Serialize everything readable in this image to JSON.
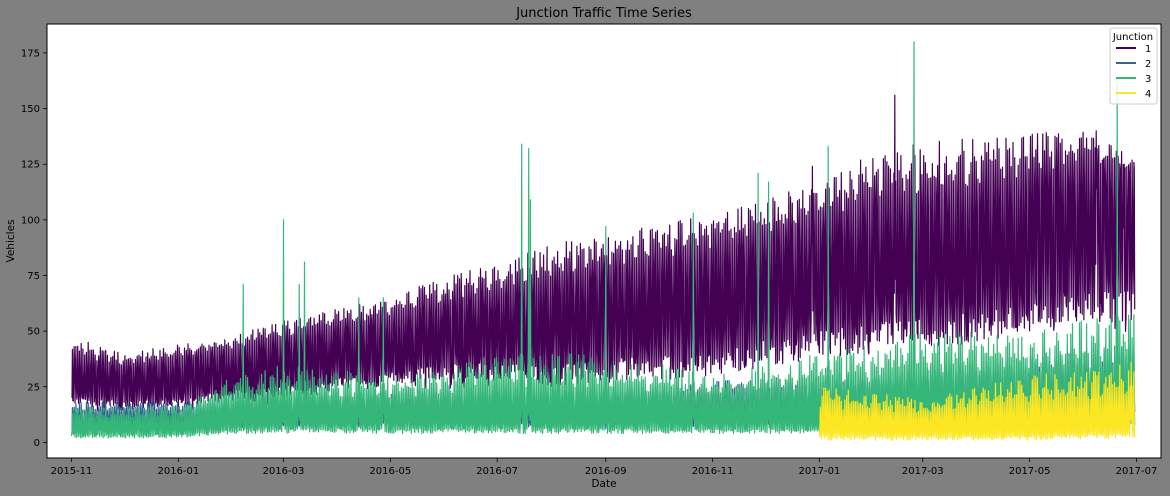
{
  "chart_data": {
    "type": "line",
    "title": "Junction Traffic Time Series",
    "xlabel": "Date",
    "ylabel": "Vehicles",
    "x_ticks": [
      "2015-11",
      "2016-01",
      "2016-03",
      "2016-05",
      "2016-07",
      "2016-09",
      "2016-11",
      "2017-01",
      "2017-03",
      "2017-05",
      "2017-07"
    ],
    "x_range": [
      "2015-10-18",
      "2017-07-15"
    ],
    "y_ticks": [
      0,
      25,
      50,
      75,
      100,
      125,
      150,
      175
    ],
    "ylim": [
      -7,
      188
    ],
    "grid": false,
    "legend": {
      "title": "Junction",
      "position": "top-right"
    },
    "series": [
      {
        "name": "1",
        "color": "#440154",
        "start": "2015-11-01",
        "end": "2017-06-30",
        "knots": [
          [
            "2015-11-01",
            16,
            34,
            48
          ],
          [
            "2015-12-01",
            15,
            30,
            40
          ],
          [
            "2016-01-01",
            16,
            34,
            44
          ],
          [
            "2016-02-01",
            19,
            38,
            48
          ],
          [
            "2016-03-01",
            20,
            42,
            55
          ],
          [
            "2016-04-01",
            23,
            46,
            60
          ],
          [
            "2016-05-01",
            25,
            50,
            65
          ],
          [
            "2016-06-01",
            28,
            56,
            75
          ],
          [
            "2016-07-01",
            28,
            60,
            80
          ],
          [
            "2016-08-01",
            25,
            62,
            90
          ],
          [
            "2016-09-01",
            27,
            70,
            93
          ],
          [
            "2016-10-01",
            28,
            72,
            98
          ],
          [
            "2016-11-01",
            30,
            76,
            103
          ],
          [
            "2016-12-01",
            34,
            82,
            110
          ],
          [
            "2017-01-01",
            38,
            88,
            118
          ],
          [
            "2017-02-01",
            40,
            95,
            130
          ],
          [
            "2017-03-01",
            42,
            98,
            135
          ],
          [
            "2017-04-01",
            45,
            100,
            137
          ],
          [
            "2017-05-01",
            48,
            108,
            140
          ],
          [
            "2017-06-01",
            52,
            115,
            140
          ],
          [
            "2017-06-30",
            55,
            118,
            128
          ]
        ],
        "peaks": [
          [
            "2017-02-13",
            156
          ],
          [
            "2017-06-08",
            140
          ],
          [
            "2017-02-24",
            132
          ],
          [
            "2016-12-28",
            124
          ],
          [
            "2017-06-24",
            125
          ]
        ]
      },
      {
        "name": "2",
        "color": "#31688e",
        "start": "2015-11-01",
        "end": "2017-06-30",
        "knots": [
          [
            "2015-11-01",
            5,
            12,
            18
          ],
          [
            "2016-01-01",
            5,
            12,
            18
          ],
          [
            "2016-05-01",
            7,
            15,
            25
          ],
          [
            "2016-09-01",
            6,
            15,
            25
          ],
          [
            "2017-01-01",
            8,
            18,
            30
          ],
          [
            "2017-04-01",
            10,
            22,
            36
          ],
          [
            "2017-06-30",
            12,
            26,
            45
          ]
        ],
        "peaks": []
      },
      {
        "name": "3",
        "color": "#35b779",
        "start": "2015-11-01",
        "end": "2017-06-30",
        "knots": [
          [
            "2015-11-01",
            2,
            8,
            15
          ],
          [
            "2016-01-01",
            2,
            8,
            16
          ],
          [
            "2016-02-01",
            4,
            12,
            30
          ],
          [
            "2016-03-01",
            4,
            13,
            35
          ],
          [
            "2016-05-01",
            4,
            13,
            30
          ],
          [
            "2016-07-01",
            4,
            13,
            40
          ],
          [
            "2016-09-01",
            4,
            13,
            40
          ],
          [
            "2016-11-01",
            4,
            12,
            30
          ],
          [
            "2017-01-01",
            4,
            13,
            40
          ],
          [
            "2017-03-01",
            5,
            18,
            50
          ],
          [
            "2017-05-01",
            6,
            18,
            50
          ],
          [
            "2017-06-30",
            6,
            20,
            60
          ]
        ],
        "peaks": [
          [
            "2016-02-07",
            71
          ],
          [
            "2016-03-01",
            100
          ],
          [
            "2016-03-10",
            71
          ],
          [
            "2016-03-13",
            81
          ],
          [
            "2016-04-13",
            65
          ],
          [
            "2016-04-27",
            65
          ],
          [
            "2016-07-15",
            134
          ],
          [
            "2016-07-19",
            132
          ],
          [
            "2016-07-20",
            109
          ],
          [
            "2016-09-01",
            97
          ],
          [
            "2016-10-21",
            103
          ],
          [
            "2016-11-27",
            121
          ],
          [
            "2016-12-03",
            117
          ],
          [
            "2017-01-06",
            133
          ],
          [
            "2017-02-24",
            180
          ],
          [
            "2017-06-20",
            162
          ]
        ]
      },
      {
        "name": "4",
        "color": "#fde725",
        "start": "2017-01-01",
        "end": "2017-06-30",
        "knots": [
          [
            "2017-01-01",
            1,
            9,
            25
          ],
          [
            "2017-03-01",
            1,
            8,
            20
          ],
          [
            "2017-05-01",
            1,
            9,
            30
          ],
          [
            "2017-06-30",
            2,
            11,
            36
          ]
        ],
        "peaks": [
          [
            "2017-06-28",
            36
          ]
        ]
      }
    ]
  }
}
